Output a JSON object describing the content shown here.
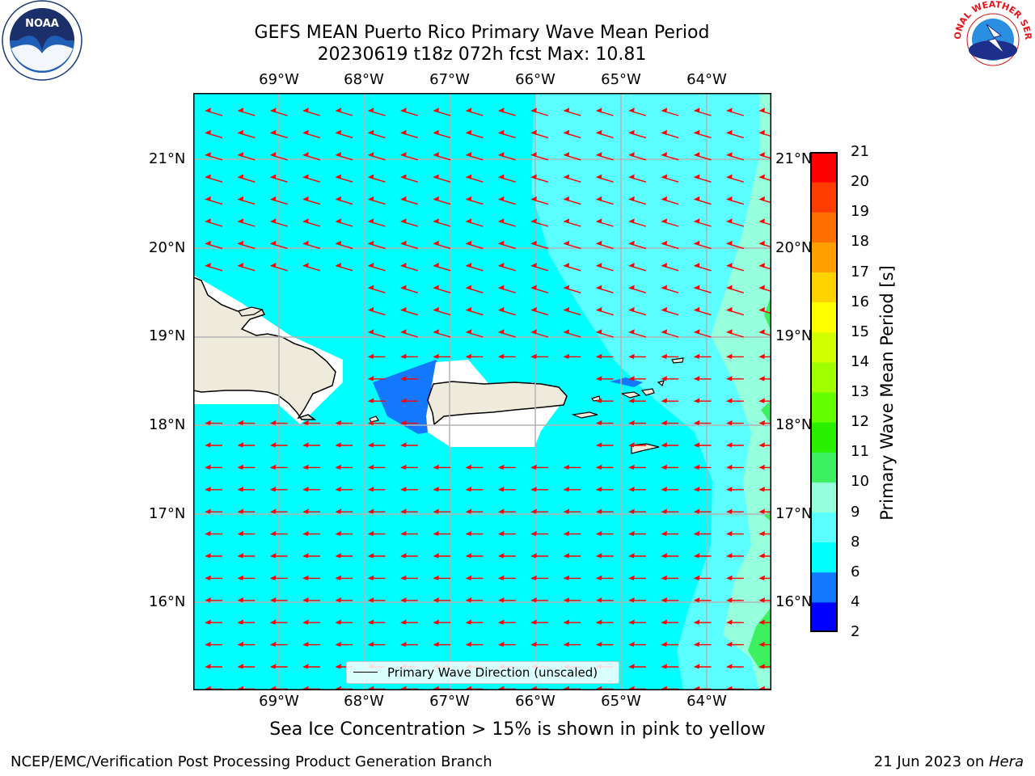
{
  "title": {
    "line1": "GEFS MEAN Puerto Rico Primary Wave Mean Period",
    "line2": "20230619 t18z 072h fcst   Max: 10.81"
  },
  "map": {
    "longitude_labels": [
      "69°W",
      "68°W",
      "67°W",
      "66°W",
      "65°W",
      "64°W"
    ],
    "latitude_labels": [
      "21°N",
      "20°N",
      "19°N",
      "18°N",
      "17°N",
      "16°N"
    ],
    "legend_label": "Primary Wave Direction (unscaled)",
    "arrow_color": "#ff0000",
    "land_color": "#efebdc"
  },
  "colorbar": {
    "label": "Primary Wave Mean Period [s]",
    "ticks": [
      "21",
      "20",
      "19",
      "18",
      "17",
      "16",
      "15",
      "14",
      "13",
      "12",
      "11",
      "10",
      "9",
      "8",
      "6",
      "4",
      "2"
    ],
    "levels": [
      {
        "from": 2,
        "to": 4,
        "color": "#0000ff"
      },
      {
        "from": 4,
        "to": 6,
        "color": "#1478ff"
      },
      {
        "from": 6,
        "to": 8,
        "color": "#00ffff"
      },
      {
        "from": 8,
        "to": 9,
        "color": "#5cffff"
      },
      {
        "from": 9,
        "to": 10,
        "color": "#96ffdc"
      },
      {
        "from": 10,
        "to": 11,
        "color": "#3cf060"
      },
      {
        "from": 11,
        "to": 12,
        "color": "#28f000"
      },
      {
        "from": 12,
        "to": 13,
        "color": "#64ff00"
      },
      {
        "from": 13,
        "to": 14,
        "color": "#a0ff00"
      },
      {
        "from": 14,
        "to": 15,
        "color": "#d2ff00"
      },
      {
        "from": 15,
        "to": 16,
        "color": "#ffff00"
      },
      {
        "from": 16,
        "to": 17,
        "color": "#ffd200"
      },
      {
        "from": 17,
        "to": 18,
        "color": "#ffa000"
      },
      {
        "from": 18,
        "to": 19,
        "color": "#ff6e00"
      },
      {
        "from": 19,
        "to": 20,
        "color": "#ff3c00"
      },
      {
        "from": 20,
        "to": 21,
        "color": "#ff0000"
      }
    ]
  },
  "caption": "Sea Ice Concentration > 15% is shown in pink to yellow",
  "footer": {
    "left": "NCEP/EMC/Verification Post Processing Product Generation Branch",
    "right_prefix": "21 Jun 2023 on ",
    "right_host": "Hera"
  },
  "logos": {
    "noaa_text": "NOAA",
    "nws_text": "NATIONAL WEATHER SERVICE"
  }
}
